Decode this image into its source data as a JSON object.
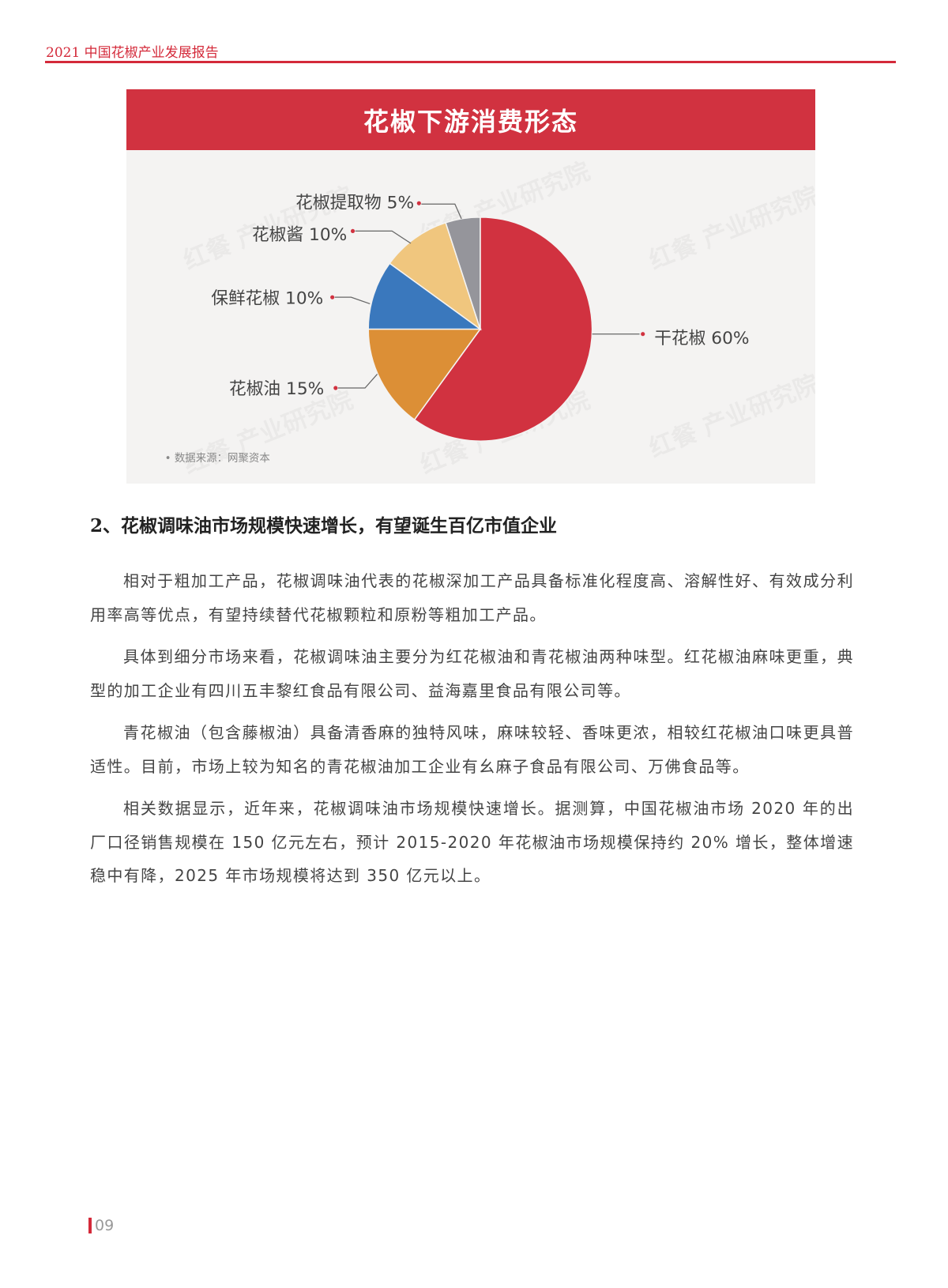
{
  "header": {
    "title": "2021 中国花椒产业发展报告",
    "accent_color": "#d42a3a"
  },
  "chart_data": {
    "type": "pie",
    "title": "花椒下游消费形态",
    "start_angle": "12 o'clock, clockwise",
    "slices": [
      {
        "label": "干花椒 60%",
        "name": "干花椒",
        "value": 60,
        "color": "#d13240"
      },
      {
        "label": "花椒油 15%",
        "name": "花椒油",
        "value": 15,
        "color": "#dc8f36"
      },
      {
        "label": "保鲜花椒 10%",
        "name": "保鲜花椒",
        "value": 10,
        "color": "#3a78bd"
      },
      {
        "label": "花椒酱 10%",
        "name": "花椒酱",
        "value": 10,
        "color": "#f0c67e"
      },
      {
        "label": "花椒提取物 5%",
        "name": "花椒提取物",
        "value": 5,
        "color": "#95959b"
      }
    ],
    "source": "• 数据来源：网聚资本",
    "watermark": "红餐 产业研究院"
  },
  "section": {
    "heading": "2、花椒调味油市场规模快速增长，有望诞生百亿市值企业",
    "paragraphs": [
      "相对于粗加工产品，花椒调味油代表的花椒深加工产品具备标准化程度高、溶解性好、有效成分利用率高等优点，有望持续替代花椒颗粒和原粉等粗加工产品。",
      "具体到细分市场来看，花椒调味油主要分为红花椒油和青花椒油两种味型。红花椒油麻味更重，典型的加工企业有四川五丰黎红食品有限公司、益海嘉里食品有限公司等。",
      "青花椒油（包含藤椒油）具备清香麻的独特风味，麻味较轻、香味更浓，相较红花椒油口味更具普适性。目前，市场上较为知名的青花椒油加工企业有幺麻子食品有限公司、万佛食品等。",
      "相关数据显示，近年来，花椒调味油市场规模快速增长。据测算，中国花椒油市场 2020 年的出厂口径销售规模在 150 亿元左右，预计 2015-2020 年花椒油市场规模保持约 20% 增长，整体增速稳中有降，2025 年市场规模将达到 350 亿元以上。"
    ]
  },
  "footer": {
    "page_number": "09"
  }
}
